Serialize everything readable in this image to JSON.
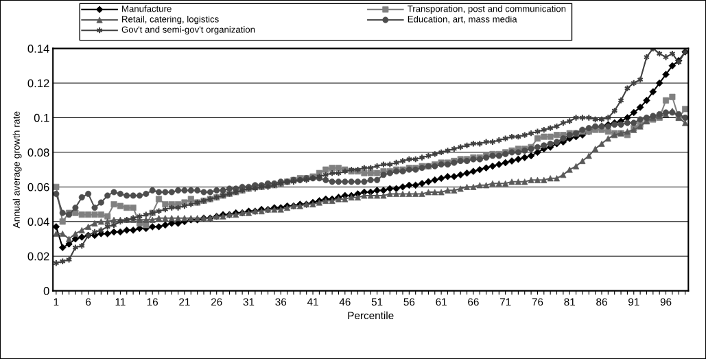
{
  "chart_data": {
    "type": "line",
    "xlabel": "Percentile",
    "ylabel": "Annual average growth rate",
    "categories": [
      "1",
      null,
      null,
      null,
      null,
      "6",
      null,
      null,
      null,
      null,
      "11",
      null,
      null,
      null,
      null,
      "16",
      null,
      null,
      null,
      null,
      "21",
      null,
      null,
      null,
      null,
      "26",
      null,
      null,
      null,
      null,
      "31",
      null,
      null,
      null,
      null,
      "36",
      null,
      null,
      null,
      null,
      "41",
      null,
      null,
      null,
      null,
      "46",
      null,
      null,
      null,
      null,
      "51",
      null,
      null,
      null,
      null,
      "56",
      null,
      null,
      null,
      null,
      "61",
      null,
      null,
      null,
      null,
      "66",
      null,
      null,
      null,
      null,
      "71",
      null,
      null,
      null,
      null,
      "76",
      null,
      null,
      null,
      null,
      "81",
      null,
      null,
      null,
      null,
      "86",
      null,
      null,
      null,
      null,
      "91",
      null,
      null,
      null,
      null,
      "96",
      null,
      null,
      null
    ],
    "ylim": [
      0,
      0.14
    ],
    "yticks": [
      0,
      0.02,
      0.04,
      0.06,
      0.08,
      {
        "value": 0.1,
        "label": "0.1"
      },
      0.12,
      0.14
    ],
    "grid": "y",
    "legend": "top",
    "line_style": "solid",
    "series": [
      {
        "name": "Manufacture",
        "color": "#000000",
        "marker": "diamond",
        "values": [
          0.037,
          0.025,
          0.027,
          0.03,
          0.031,
          0.032,
          0.032,
          0.033,
          0.033,
          0.034,
          0.034,
          0.035,
          0.035,
          0.036,
          0.036,
          0.037,
          0.037,
          0.038,
          0.039,
          0.039,
          0.04,
          0.041,
          0.041,
          0.042,
          0.042,
          0.043,
          0.044,
          0.044,
          0.045,
          0.045,
          0.046,
          0.046,
          0.047,
          0.047,
          0.048,
          0.048,
          0.049,
          0.049,
          0.05,
          0.05,
          0.051,
          0.052,
          0.053,
          0.053,
          0.054,
          0.055,
          0.055,
          0.056,
          0.057,
          0.057,
          0.058,
          0.058,
          0.059,
          0.059,
          0.06,
          0.061,
          0.061,
          0.062,
          0.063,
          0.064,
          0.065,
          0.066,
          0.066,
          0.067,
          0.068,
          0.069,
          0.07,
          0.071,
          0.072,
          0.073,
          0.074,
          0.075,
          0.076,
          0.077,
          0.078,
          0.08,
          0.082,
          0.083,
          0.085,
          0.086,
          0.088,
          0.089,
          0.09,
          0.092,
          0.094,
          0.095,
          0.096,
          0.097,
          0.098,
          0.1,
          0.103,
          0.106,
          0.11,
          0.115,
          0.12,
          0.125,
          0.13,
          0.133,
          0.138
        ]
      },
      {
        "name": "Transporation, post and communication",
        "color": "#808080",
        "marker": "square",
        "values": [
          0.06,
          0.04,
          0.045,
          0.045,
          0.044,
          0.044,
          0.044,
          0.044,
          0.043,
          0.05,
          0.049,
          0.048,
          0.048,
          0.039,
          0.038,
          0.045,
          0.053,
          0.05,
          0.05,
          0.05,
          0.051,
          0.053,
          0.051,
          0.052,
          0.053,
          0.054,
          0.055,
          0.056,
          0.057,
          0.058,
          0.059,
          0.06,
          0.06,
          0.061,
          0.061,
          0.062,
          0.063,
          0.064,
          0.065,
          0.065,
          0.066,
          0.068,
          0.07,
          0.071,
          0.071,
          0.07,
          0.069,
          0.069,
          0.068,
          0.068,
          0.068,
          0.069,
          0.069,
          0.07,
          0.07,
          0.071,
          0.071,
          0.072,
          0.072,
          0.073,
          0.074,
          0.074,
          0.075,
          0.076,
          0.076,
          0.077,
          0.077,
          0.078,
          0.079,
          0.079,
          0.08,
          0.081,
          0.082,
          0.082,
          0.083,
          0.088,
          0.089,
          0.089,
          0.09,
          0.09,
          0.091,
          0.091,
          0.092,
          0.092,
          0.093,
          0.093,
          0.092,
          0.091,
          0.091,
          0.09,
          0.094,
          0.096,
          0.098,
          0.099,
          0.1,
          0.11,
          0.112,
          0.1,
          0.105
        ]
      },
      {
        "name": "Retail, catering, logistics",
        "color": "#595959",
        "marker": "triangle",
        "values": [
          0.033,
          0.033,
          0.03,
          0.033,
          0.035,
          0.037,
          0.039,
          0.04,
          0.04,
          0.041,
          0.041,
          0.041,
          0.041,
          0.041,
          0.041,
          0.041,
          0.042,
          0.042,
          0.042,
          0.042,
          0.042,
          0.042,
          0.042,
          0.042,
          0.042,
          0.043,
          0.043,
          0.044,
          0.044,
          0.045,
          0.045,
          0.046,
          0.046,
          0.047,
          0.047,
          0.047,
          0.048,
          0.049,
          0.049,
          0.05,
          0.05,
          0.051,
          0.052,
          0.052,
          0.053,
          0.053,
          0.054,
          0.054,
          0.055,
          0.055,
          0.055,
          0.055,
          0.056,
          0.056,
          0.056,
          0.056,
          0.056,
          0.056,
          0.057,
          0.057,
          0.057,
          0.058,
          0.058,
          0.059,
          0.06,
          0.06,
          0.061,
          0.061,
          0.062,
          0.062,
          0.062,
          0.063,
          0.063,
          0.063,
          0.064,
          0.064,
          0.064,
          0.065,
          0.065,
          0.067,
          0.07,
          0.072,
          0.075,
          0.078,
          0.082,
          0.085,
          0.088,
          0.09,
          0.091,
          0.092,
          0.093,
          0.095,
          0.098,
          0.1,
          0.101,
          0.102,
          0.104,
          0.1,
          0.097
        ]
      },
      {
        "name": "Education, art, mass media",
        "color": "#4d4d4d",
        "marker": "circle",
        "values": [
          0.056,
          0.045,
          0.044,
          0.048,
          0.054,
          0.056,
          0.048,
          0.051,
          0.055,
          0.057,
          0.056,
          0.055,
          0.055,
          0.055,
          0.056,
          0.058,
          0.057,
          0.057,
          0.057,
          0.058,
          0.058,
          0.058,
          0.058,
          0.057,
          0.057,
          0.058,
          0.058,
          0.059,
          0.059,
          0.06,
          0.06,
          0.061,
          0.061,
          0.062,
          0.062,
          0.063,
          0.063,
          0.064,
          0.064,
          0.065,
          0.065,
          0.065,
          0.064,
          0.063,
          0.063,
          0.063,
          0.063,
          0.063,
          0.063,
          0.064,
          0.064,
          0.067,
          0.068,
          0.069,
          0.069,
          0.07,
          0.07,
          0.071,
          0.072,
          0.072,
          0.073,
          0.073,
          0.074,
          0.075,
          0.075,
          0.076,
          0.076,
          0.077,
          0.078,
          0.078,
          0.079,
          0.08,
          0.08,
          0.081,
          0.082,
          0.083,
          0.084,
          0.085,
          0.086,
          0.088,
          0.09,
          0.091,
          0.093,
          0.094,
          0.095,
          0.095,
          0.095,
          0.096,
          0.096,
          0.097,
          0.097,
          0.099,
          0.1,
          0.101,
          0.102,
          0.103,
          0.103,
          0.102,
          0.1
        ]
      },
      {
        "name": "Gov't and semi-gov't organization",
        "color": "#404040",
        "marker": "cross",
        "values": [
          0.016,
          0.017,
          0.018,
          0.025,
          0.026,
          0.032,
          0.034,
          0.035,
          0.037,
          0.038,
          0.04,
          0.041,
          0.042,
          0.043,
          0.044,
          0.045,
          0.046,
          0.047,
          0.048,
          0.048,
          0.049,
          0.05,
          0.051,
          0.052,
          0.053,
          0.054,
          0.055,
          0.056,
          0.057,
          0.058,
          0.059,
          0.059,
          0.06,
          0.06,
          0.061,
          0.062,
          0.063,
          0.063,
          0.064,
          0.064,
          0.065,
          0.066,
          0.067,
          0.068,
          0.068,
          0.069,
          0.07,
          0.07,
          0.071,
          0.071,
          0.072,
          0.073,
          0.073,
          0.074,
          0.075,
          0.076,
          0.076,
          0.077,
          0.078,
          0.079,
          0.08,
          0.081,
          0.082,
          0.083,
          0.084,
          0.085,
          0.085,
          0.086,
          0.086,
          0.087,
          0.088,
          0.089,
          0.089,
          0.09,
          0.091,
          0.092,
          0.093,
          0.094,
          0.095,
          0.097,
          0.098,
          0.1,
          0.1,
          0.1,
          0.099,
          0.099,
          0.1,
          0.104,
          0.11,
          0.117,
          0.12,
          0.122,
          0.135,
          0.14,
          0.137,
          0.135,
          0.137,
          0.132,
          0.138
        ]
      }
    ]
  }
}
